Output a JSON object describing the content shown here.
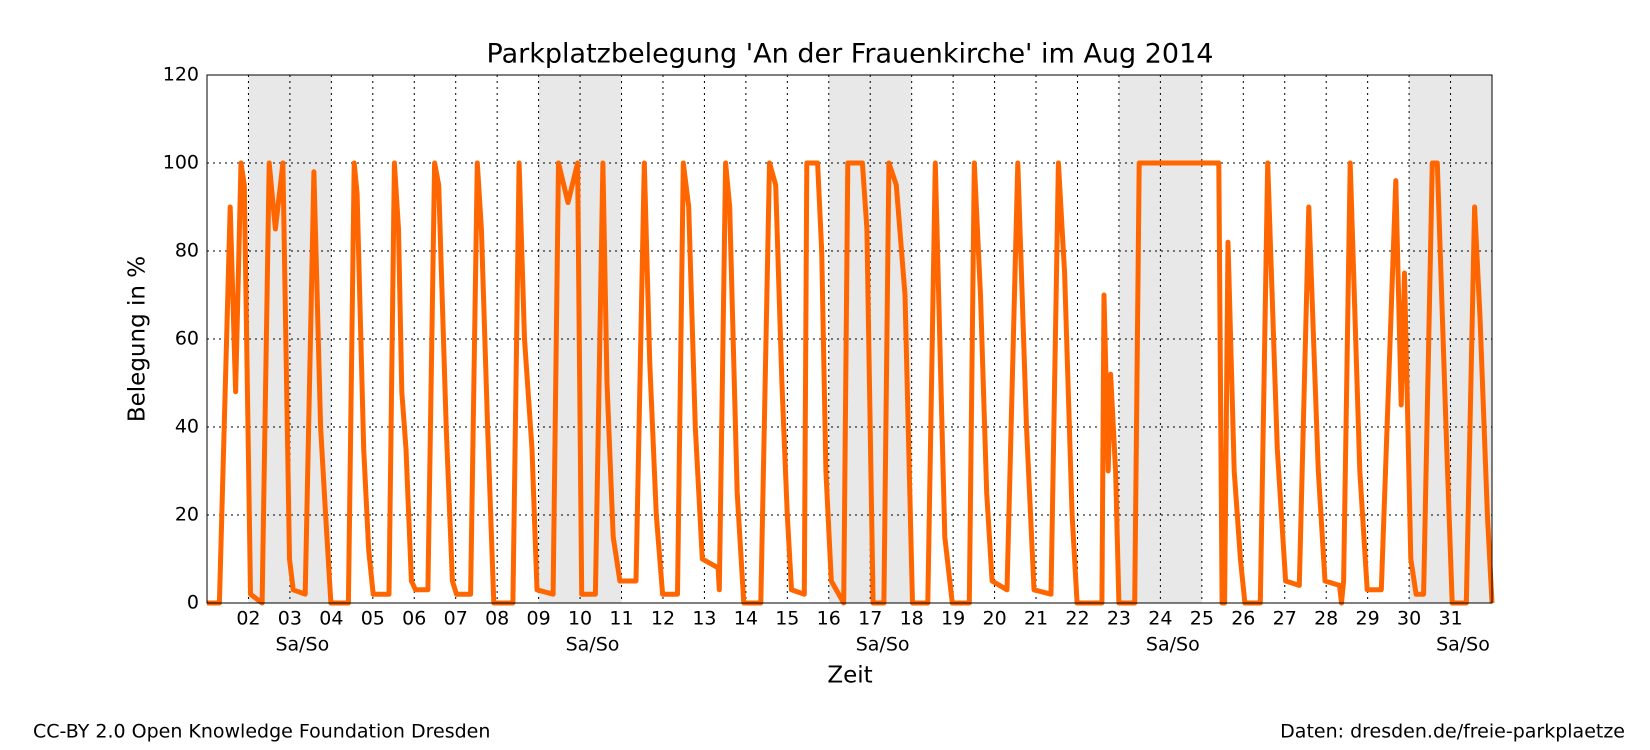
{
  "chart_data": {
    "type": "line",
    "title": "Parkplatzbelegung 'An der Frauenkirche' im Aug 2014",
    "xlabel": "Zeit",
    "ylabel": "Belegung in %",
    "weekend_label": "Sa/So",
    "weekends": [
      [
        2,
        4
      ],
      [
        9,
        11
      ],
      [
        16,
        18
      ],
      [
        23,
        25
      ],
      [
        30,
        32
      ]
    ],
    "footer_left": "CC-BY 2.0 Open Knowledge Foundation Dresden",
    "footer_right": "Daten: dresden.de/freie-parkplaetze",
    "color": "#ff6600",
    "grid": true,
    "xlim": [
      1,
      32
    ],
    "ylim": [
      0,
      120
    ],
    "yticks": [
      0,
      20,
      40,
      60,
      80,
      100,
      120
    ],
    "xticks": [
      {
        "value": 2,
        "label": "02"
      },
      {
        "value": 3,
        "label": "03"
      },
      {
        "value": 4,
        "label": "04"
      },
      {
        "value": 5,
        "label": "05"
      },
      {
        "value": 6,
        "label": "06"
      },
      {
        "value": 7,
        "label": "07"
      },
      {
        "value": 8,
        "label": "08"
      },
      {
        "value": 9,
        "label": "09"
      },
      10,
      11,
      12,
      13,
      14,
      15,
      16,
      17,
      18,
      19,
      20,
      21,
      22,
      23,
      24,
      25,
      26,
      27,
      28,
      29,
      30,
      31
    ],
    "x": [
      1.0,
      1.3,
      1.56,
      1.69,
      1.82,
      1.9,
      2.05,
      2.33,
      2.5,
      2.65,
      2.83,
      2.99,
      3.08,
      3.37,
      3.58,
      3.74,
      3.86,
      3.99,
      4.41,
      4.55,
      4.62,
      4.78,
      4.9,
      5.01,
      5.39,
      5.52,
      5.62,
      5.7,
      5.8,
      5.93,
      6.03,
      6.33,
      6.49,
      6.59,
      6.77,
      6.92,
      7.02,
      7.36,
      7.52,
      7.62,
      7.77,
      7.92,
      8.38,
      8.53,
      8.66,
      8.84,
      8.96,
      9.35,
      9.48,
      9.71,
      9.94,
      10.04,
      10.37,
      10.55,
      10.65,
      10.8,
      10.96,
      11.35,
      11.55,
      11.68,
      11.84,
      11.99,
      12.35,
      12.49,
      12.62,
      12.78,
      12.95,
      13.33,
      13.36,
      13.51,
      13.61,
      13.79,
      13.95,
      14.36,
      14.57,
      14.72,
      14.87,
      15.0,
      15.1,
      15.41,
      15.47,
      15.73,
      15.83,
      15.93,
      16.06,
      16.36,
      16.46,
      16.81,
      16.92,
      17.07,
      17.33,
      17.45,
      17.63,
      17.84,
      18.02,
      18.39,
      18.57,
      18.8,
      18.98,
      19.39,
      19.51,
      19.66,
      19.81,
      19.94,
      20.3,
      20.56,
      20.77,
      20.95,
      21.36,
      21.54,
      21.69,
      21.87,
      21.99,
      22.59,
      22.64,
      22.74,
      22.8,
      22.92,
      23.0,
      23.38,
      23.49,
      25.41,
      25.49,
      25.55,
      25.63,
      25.78,
      25.93,
      26.04,
      26.41,
      26.59,
      26.82,
      27.02,
      27.35,
      27.58,
      27.81,
      27.97,
      28.32,
      28.37,
      28.42,
      28.58,
      28.81,
      28.99,
      29.33,
      29.68,
      29.81,
      29.89,
      30.04,
      30.17,
      30.35,
      30.56,
      30.68,
      30.89,
      31.04,
      31.38,
      31.58,
      31.71,
      31.89,
      32.0
    ],
    "values": [
      0,
      0,
      90,
      48,
      100,
      95,
      2,
      0,
      100,
      85,
      100,
      10,
      3,
      2,
      98,
      40,
      20,
      0,
      0,
      100,
      93,
      35,
      12,
      2,
      2,
      100,
      85,
      48,
      35,
      5,
      3,
      3,
      100,
      95,
      40,
      5,
      2,
      2,
      100,
      85,
      40,
      0,
      0,
      100,
      60,
      35,
      3,
      2,
      100,
      91,
      100,
      2,
      2,
      100,
      50,
      15,
      5,
      5,
      100,
      55,
      20,
      2,
      2,
      100,
      90,
      40,
      10,
      8,
      3,
      100,
      90,
      25,
      0,
      0,
      100,
      95,
      50,
      20,
      3,
      2,
      100,
      100,
      80,
      30,
      5,
      0,
      100,
      100,
      85,
      0,
      0,
      100,
      95,
      70,
      0,
      0,
      100,
      15,
      0,
      0,
      100,
      70,
      25,
      5,
      3,
      100,
      40,
      3,
      2,
      100,
      75,
      20,
      0,
      0,
      70,
      30,
      52,
      30,
      0,
      0,
      100,
      100,
      0,
      0,
      82,
      30,
      10,
      0,
      0,
      100,
      35,
      5,
      4,
      90,
      30,
      5,
      4,
      0,
      5,
      100,
      30,
      3,
      3,
      96,
      45,
      75,
      10,
      2,
      2,
      100,
      100,
      40,
      0,
      0,
      90,
      65,
      20,
      0
    ]
  }
}
